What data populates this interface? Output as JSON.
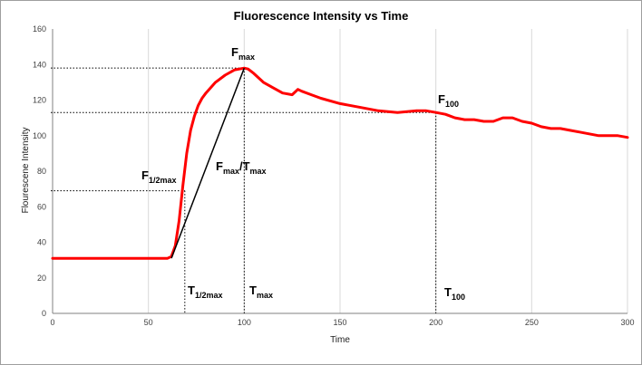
{
  "chart_data": {
    "type": "line",
    "title": "Fluorescence Intensity vs Time",
    "xlabel": "Time",
    "ylabel": "Flourescene Intensity",
    "xlim": [
      0,
      300
    ],
    "ylim": [
      0,
      160
    ],
    "x_ticks": [
      0,
      50,
      100,
      150,
      200,
      250,
      300
    ],
    "y_ticks": [
      0,
      20,
      40,
      60,
      80,
      100,
      120,
      140,
      160
    ],
    "grid": "vertical",
    "line_color": "#ff0000",
    "series": [
      {
        "x": [
          0,
          10,
          20,
          30,
          40,
          50,
          55,
          60,
          62,
          64,
          66,
          68,
          70,
          72,
          74,
          76,
          78,
          80,
          85,
          90,
          95,
          100,
          102,
          105,
          110,
          115,
          120,
          125,
          128,
          130,
          135,
          140,
          150,
          160,
          170,
          180,
          190,
          195,
          200,
          205,
          210,
          215,
          220,
          225,
          230,
          235,
          240,
          245,
          250,
          255,
          260,
          265,
          270,
          275,
          280,
          285,
          290,
          295,
          300
        ],
        "y": [
          31,
          31,
          31,
          31,
          31,
          31,
          31,
          31,
          32,
          38,
          52,
          72,
          90,
          103,
          111,
          117,
          121,
          124,
          130,
          134,
          137,
          138,
          137.5,
          135,
          130,
          127,
          124,
          123,
          126,
          125,
          123,
          121,
          118,
          116,
          114,
          113,
          114,
          114,
          113,
          112,
          110,
          109,
          109,
          108,
          108,
          110,
          110,
          108,
          107,
          105,
          104,
          104,
          103,
          102,
          101,
          100,
          100,
          100,
          99
        ]
      }
    ],
    "annotations": {
      "fmax": {
        "x": 100,
        "y": 138,
        "label_main": "F",
        "label_sub": "max"
      },
      "f100": {
        "x": 200,
        "y": 113,
        "label_main": "F",
        "label_sub": "100"
      },
      "fhalf": {
        "y": 69,
        "label_main": "F",
        "label_sub": "1/2max"
      },
      "thalf": {
        "x": 69,
        "label_main": "T",
        "label_sub": "1/2max"
      },
      "tmax": {
        "x": 100,
        "label_main": "T",
        "label_sub": "max"
      },
      "t100": {
        "x": 200,
        "label_main": "T",
        "label_sub": "100"
      },
      "slope": {
        "x1": 62,
        "y1": 31,
        "x2": 100,
        "y2": 138,
        "label_a": "F",
        "label_a_sub": "max",
        "label_b": "/T",
        "label_b_sub": "max"
      }
    }
  }
}
